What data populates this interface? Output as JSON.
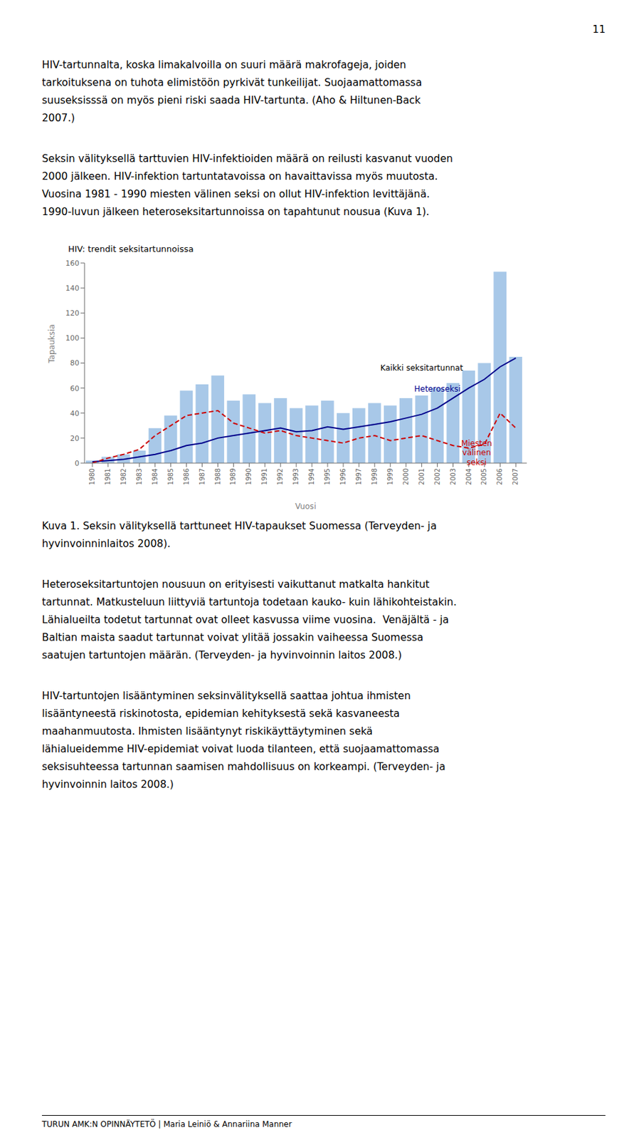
{
  "page_number": "11",
  "text_before": [
    [
      "HIV-tartunnalta, koska limakalvoilla on suuri määrä makrofageja, joiden",
      "tarkoituksena on tuhota elimistöön pyrkivät tunkeilijat. Suojaamattomassa",
      "suuseksisssä on myös pieni riski saada HIV-tartunta. (Aho & Hiltunen-Back",
      "2007.)"
    ],
    [
      "Seksin välityksellä tarttuvien HIV-infektioiden määrä on reilusti kasvanut vuoden",
      "2000 jälkeen. HIV-infektion tartuntatavoissa on havaittavissa myös muutosta.",
      "Vuosina 1981 - 1990 miesten välinen seksi on ollut HIV-infektion levittäjänä.",
      "1990-luvun jälkeen heteroseksitartunnoissa on tapahtunut nousua (Kuva 1)."
    ]
  ],
  "caption": [
    "Kuva 1. Seksin välityksellä tarttuneet HIV-tapaukset Suomessa (Terveyden- ja",
    "hyvinvoinninlaitos 2008)."
  ],
  "text_after": [
    [
      "Heteroseksitartuntojen nousuun on erityisesti vaikuttanut matkalta hankitut",
      "tartunnat. Matkusteluun liittyviä tartuntoja todetaan kauko- kuin lähikohteistakin.",
      "Lähialueilta todetut tartunnat ovat olleet kasvussa viime vuosina.  Venäjältä - ja",
      "Baltian maista saadut tartunnat voivat ylitää jossakin vaiheessa Suomessa",
      "saatujen tartuntojen määrän. (Terveyden- ja hyvinvoinnin laitos 2008.)"
    ],
    [
      "HIV-tartuntojen lisääntyminen seksinvälityksellä saattaa johtua ihmisten",
      "lisääntyneestä riskinotosta, epidemian kehityksestä sekä kasvaneesta",
      "maahanmuutosta. Ihmisten lisääntynyt riskikäyttäytyminen sekä",
      "lähialueidemme HIV-epidemiat voivat luoda tilanteen, että suojaamattomassa",
      "seksisuhteessa tartunnan saamisen mahdollisuus on korkeampi. (Terveyden- ja",
      "hyvinvoinnin laitos 2008.)"
    ]
  ],
  "footer": "TURUN AMK:N OPINNÄYTETÖ | Maria Leiniö & Annariina Manner",
  "chart_data": {
    "type": "bar",
    "title": "HIV: trendit seksitartunnoissa",
    "x_label": "Vuosi",
    "y_label": "Tapauksia",
    "x": [
      1980,
      1981,
      1982,
      1983,
      1984,
      1985,
      1986,
      1987,
      1988,
      1989,
      1990,
      1991,
      1992,
      1993,
      1994,
      1995,
      1996,
      1997,
      1998,
      1999,
      2000,
      2001,
      2002,
      2003,
      2004,
      2005,
      2006,
      2007
    ],
    "xlim": [
      1979.5,
      2007.7
    ],
    "xticks": [
      1980,
      1981,
      1982,
      1983,
      1984,
      1985,
      1986,
      1987,
      1988,
      1989,
      1990,
      1991,
      1992,
      1993,
      1994,
      1995,
      1996,
      1997,
      1998,
      1999,
      2000,
      2001,
      2002,
      2003,
      2004,
      2005,
      2006,
      2007
    ],
    "ylim": [
      0,
      160
    ],
    "yticks": [
      0,
      20,
      40,
      60,
      80,
      100,
      120,
      140,
      160
    ],
    "grid": false,
    "series": [
      {
        "type": "bar",
        "color": "#a8c8e8",
        "values": [
          2,
          5,
          7,
          10,
          28,
          38,
          58,
          63,
          70,
          50,
          55,
          48,
          52,
          44,
          46,
          50,
          40,
          44,
          48,
          46,
          52,
          54,
          60,
          64,
          74,
          80,
          153,
          85
        ]
      },
      {
        "type": "line",
        "color": "#00008B",
        "line_style": "solid",
        "values": [
          1,
          2,
          3,
          5,
          7,
          10,
          14,
          16,
          20,
          22,
          24,
          26,
          28,
          25,
          26,
          29,
          27,
          29,
          31,
          33,
          36,
          39,
          44,
          52,
          60,
          67,
          77,
          84
        ]
      },
      {
        "type": "line",
        "color": "#CC0000",
        "line_style": "dashed",
        "values": [
          0,
          4,
          7,
          11,
          22,
          30,
          38,
          40,
          42,
          32,
          28,
          24,
          26,
          22,
          20,
          18,
          16,
          20,
          22,
          18,
          20,
          22,
          18,
          14,
          12,
          15,
          40,
          28
        ]
      }
    ],
    "annotations": [
      {
        "text": "Kaikki seksitartunnat",
        "x": 2001.0,
        "y": 72,
        "color": "#000000"
      },
      {
        "text": "Heteroseksi",
        "x": 2002.0,
        "y": 55,
        "color": "#00008B"
      },
      {
        "text": "Miesten\nvälinen\nseksi",
        "x": 2004.5,
        "y": 20,
        "color": "#CC0000"
      }
    ]
  }
}
